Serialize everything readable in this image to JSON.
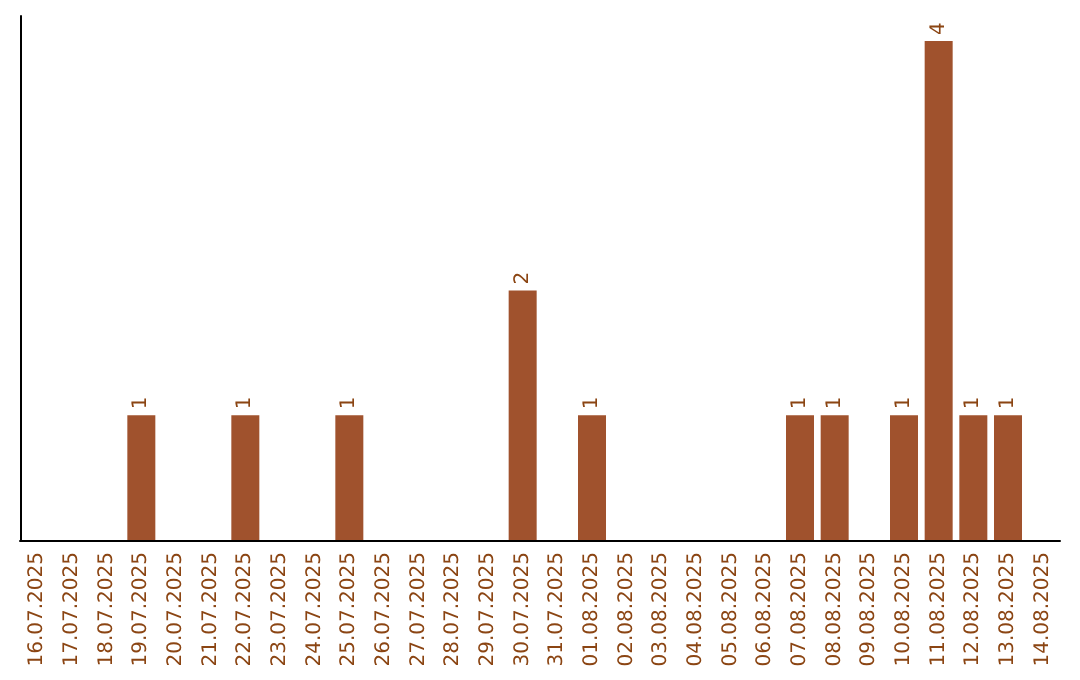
{
  "chart_data": {
    "type": "bar",
    "categories": [
      "16.07.2025",
      "17.07.2025",
      "18.07.2025",
      "19.07.2025",
      "20.07.2025",
      "21.07.2025",
      "22.07.2025",
      "23.07.2025",
      "24.07.2025",
      "25.07.2025",
      "26.07.2025",
      "27.07.2025",
      "28.07.2025",
      "29.07.2025",
      "30.07.2025",
      "31.07.2025",
      "01.08.2025",
      "02.08.2025",
      "03.08.2025",
      "04.08.2025",
      "05.08.2025",
      "06.08.2025",
      "07.08.2025",
      "08.08.2025",
      "09.08.2025",
      "10.08.2025",
      "11.08.2025",
      "12.08.2025",
      "13.08.2025",
      "14.08.2025"
    ],
    "values": [
      0,
      0,
      0,
      1,
      0,
      0,
      1,
      0,
      0,
      1,
      0,
      0,
      0,
      0,
      2,
      0,
      1,
      0,
      0,
      0,
      0,
      0,
      1,
      1,
      0,
      1,
      4,
      1,
      1,
      0
    ],
    "value_labels": [
      null,
      null,
      null,
      "1",
      null,
      null,
      "1",
      null,
      null,
      "1",
      null,
      null,
      null,
      null,
      "2",
      null,
      "1",
      null,
      null,
      null,
      null,
      null,
      "1",
      "1",
      null,
      "1",
      "4",
      "1",
      "1",
      null
    ],
    "color": "#a0522d",
    "tick_labels": "x",
    "grid": false
  }
}
